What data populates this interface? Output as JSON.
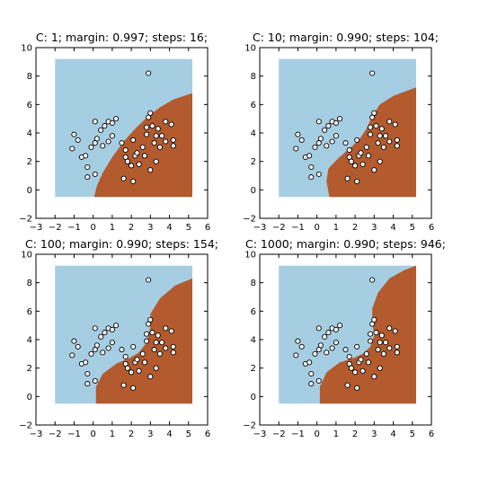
{
  "colors": {
    "region_positive": "#b35a2e",
    "region_negative": "#a6cee3",
    "point_face": "#ffffff",
    "point_edge": "#000000",
    "frame": "#000000"
  },
  "chart_data": [
    {
      "type": "scatter",
      "title": "C: 1; margin: 0.997; steps: 16;",
      "xlabel": "",
      "ylabel": "",
      "xlim": [
        -3,
        6
      ],
      "ylim": [
        -2,
        10
      ],
      "xticks": [
        -3,
        -2,
        -1,
        0,
        1,
        2,
        3,
        4,
        5,
        6
      ],
      "yticks": [
        -2,
        0,
        2,
        4,
        6,
        8,
        10
      ],
      "grid": false,
      "region_x": [
        -2,
        5.2
      ],
      "region_y": [
        -0.5,
        9.2
      ],
      "boundary": [
        [
          0.05,
          -0.5
        ],
        [
          0.2,
          0.3
        ],
        [
          0.5,
          1.2
        ],
        [
          1.0,
          2.3
        ],
        [
          1.6,
          3.4
        ],
        [
          2.2,
          4.3
        ],
        [
          2.9,
          5.2
        ],
        [
          3.5,
          5.8
        ],
        [
          4.2,
          6.35
        ],
        [
          5.2,
          6.8
        ]
      ],
      "points": [
        [
          -1.0,
          3.9
        ],
        [
          -0.8,
          3.5
        ],
        [
          -1.1,
          2.9
        ],
        [
          -0.6,
          2.3
        ],
        [
          -0.3,
          1.6
        ],
        [
          -0.4,
          2.4
        ],
        [
          -0.3,
          0.9
        ],
        [
          0.1,
          1.1
        ],
        [
          -0.1,
          3.0
        ],
        [
          0.1,
          3.3
        ],
        [
          0.2,
          3.6
        ],
        [
          0.4,
          4.2
        ],
        [
          0.6,
          4.5
        ],
        [
          0.8,
          4.8
        ],
        [
          1.0,
          4.7
        ],
        [
          1.2,
          5.0
        ],
        [
          0.1,
          4.8
        ],
        [
          0.5,
          3.1
        ],
        [
          0.8,
          3.4
        ],
        [
          1.0,
          3.8
        ],
        [
          1.5,
          3.3
        ],
        [
          1.7,
          2.8
        ],
        [
          1.7,
          2.3
        ],
        [
          1.8,
          2.0
        ],
        [
          2.0,
          1.7
        ],
        [
          2.2,
          2.4
        ],
        [
          2.3,
          2.6
        ],
        [
          2.1,
          3.5
        ],
        [
          2.4,
          1.8
        ],
        [
          2.6,
          3.0
        ],
        [
          2.7,
          2.4
        ],
        [
          2.8,
          3.9
        ],
        [
          2.8,
          4.4
        ],
        [
          2.9,
          5.1
        ],
        [
          3.0,
          5.4
        ],
        [
          3.1,
          4.5
        ],
        [
          3.2,
          3.3
        ],
        [
          3.3,
          3.8
        ],
        [
          3.4,
          4.3
        ],
        [
          3.5,
          3.0
        ],
        [
          3.6,
          3.8
        ],
        [
          3.8,
          4.8
        ],
        [
          4.1,
          4.6
        ],
        [
          4.2,
          3.1
        ],
        [
          4.2,
          3.5
        ],
        [
          3.8,
          3.4
        ],
        [
          3.3,
          2.0
        ],
        [
          3.0,
          1.4
        ],
        [
          2.1,
          0.6
        ],
        [
          1.6,
          0.8
        ],
        [
          2.9,
          8.2
        ]
      ]
    },
    {
      "type": "scatter",
      "title": "C: 10; margin: 0.990; steps: 104;",
      "xlabel": "",
      "ylabel": "",
      "xlim": [
        -3,
        6
      ],
      "ylim": [
        -2,
        10
      ],
      "xticks": [
        -3,
        -2,
        -1,
        0,
        1,
        2,
        3,
        4,
        5,
        6
      ],
      "yticks": [
        -2,
        0,
        2,
        4,
        6,
        8,
        10
      ],
      "grid": false,
      "region_x": [
        -2,
        5.2
      ],
      "region_y": [
        -0.5,
        9.2
      ],
      "boundary": [
        [
          0.65,
          -0.5
        ],
        [
          0.5,
          0.6
        ],
        [
          0.6,
          1.5
        ],
        [
          1.1,
          2.2
        ],
        [
          1.7,
          2.9
        ],
        [
          2.2,
          3.5
        ],
        [
          2.6,
          4.3
        ],
        [
          2.9,
          5.2
        ],
        [
          3.3,
          6.0
        ],
        [
          4.0,
          6.6
        ],
        [
          5.2,
          7.2
        ]
      ],
      "points": [
        [
          -1.0,
          3.9
        ],
        [
          -0.8,
          3.5
        ],
        [
          -1.1,
          2.9
        ],
        [
          -0.6,
          2.3
        ],
        [
          -0.3,
          1.6
        ],
        [
          -0.4,
          2.4
        ],
        [
          -0.3,
          0.9
        ],
        [
          0.1,
          1.1
        ],
        [
          -0.1,
          3.0
        ],
        [
          0.1,
          3.3
        ],
        [
          0.2,
          3.6
        ],
        [
          0.4,
          4.2
        ],
        [
          0.6,
          4.5
        ],
        [
          0.8,
          4.8
        ],
        [
          1.0,
          4.7
        ],
        [
          1.2,
          5.0
        ],
        [
          0.1,
          4.8
        ],
        [
          0.5,
          3.1
        ],
        [
          0.8,
          3.4
        ],
        [
          1.0,
          3.8
        ],
        [
          1.5,
          3.3
        ],
        [
          1.7,
          2.8
        ],
        [
          1.7,
          2.3
        ],
        [
          1.8,
          2.0
        ],
        [
          2.0,
          1.7
        ],
        [
          2.2,
          2.4
        ],
        [
          2.3,
          2.6
        ],
        [
          2.1,
          3.5
        ],
        [
          2.4,
          1.8
        ],
        [
          2.6,
          3.0
        ],
        [
          2.7,
          2.4
        ],
        [
          2.8,
          3.9
        ],
        [
          2.8,
          4.4
        ],
        [
          2.9,
          5.1
        ],
        [
          3.0,
          5.4
        ],
        [
          3.1,
          4.5
        ],
        [
          3.2,
          3.3
        ],
        [
          3.3,
          3.8
        ],
        [
          3.4,
          4.3
        ],
        [
          3.5,
          3.0
        ],
        [
          3.6,
          3.8
        ],
        [
          3.8,
          4.8
        ],
        [
          4.1,
          4.6
        ],
        [
          4.2,
          3.1
        ],
        [
          4.2,
          3.5
        ],
        [
          3.8,
          3.4
        ],
        [
          3.3,
          2.0
        ],
        [
          3.0,
          1.4
        ],
        [
          2.1,
          0.6
        ],
        [
          1.6,
          0.8
        ],
        [
          2.9,
          8.2
        ]
      ]
    },
    {
      "type": "scatter",
      "title": "C: 100; margin: 0.990; steps: 154;",
      "xlabel": "",
      "ylabel": "",
      "xlim": [
        -3,
        6
      ],
      "ylim": [
        -2,
        10
      ],
      "xticks": [
        -3,
        -2,
        -1,
        0,
        1,
        2,
        3,
        4,
        5,
        6
      ],
      "yticks": [
        -2,
        0,
        2,
        4,
        6,
        8,
        10
      ],
      "grid": false,
      "region_x": [
        -2,
        5.2
      ],
      "region_y": [
        -0.5,
        9.2
      ],
      "boundary": [
        [
          0.15,
          -0.5
        ],
        [
          0.15,
          0.7
        ],
        [
          0.5,
          1.6
        ],
        [
          1.2,
          2.3
        ],
        [
          1.9,
          2.7
        ],
        [
          2.4,
          3.1
        ],
        [
          2.8,
          3.8
        ],
        [
          3.0,
          4.9
        ],
        [
          3.0,
          5.8
        ],
        [
          3.5,
          6.9
        ],
        [
          4.3,
          7.8
        ],
        [
          5.2,
          8.3
        ]
      ],
      "points": [
        [
          -1.0,
          3.9
        ],
        [
          -0.8,
          3.5
        ],
        [
          -1.1,
          2.9
        ],
        [
          -0.6,
          2.3
        ],
        [
          -0.3,
          1.6
        ],
        [
          -0.4,
          2.4
        ],
        [
          -0.3,
          0.9
        ],
        [
          0.1,
          1.1
        ],
        [
          -0.1,
          3.0
        ],
        [
          0.1,
          3.3
        ],
        [
          0.2,
          3.6
        ],
        [
          0.4,
          4.2
        ],
        [
          0.6,
          4.5
        ],
        [
          0.8,
          4.8
        ],
        [
          1.0,
          4.7
        ],
        [
          1.2,
          5.0
        ],
        [
          0.1,
          4.8
        ],
        [
          0.5,
          3.1
        ],
        [
          0.8,
          3.4
        ],
        [
          1.0,
          3.8
        ],
        [
          1.5,
          3.3
        ],
        [
          1.7,
          2.8
        ],
        [
          1.7,
          2.3
        ],
        [
          1.8,
          2.0
        ],
        [
          2.0,
          1.7
        ],
        [
          2.2,
          2.4
        ],
        [
          2.3,
          2.6
        ],
        [
          2.1,
          3.5
        ],
        [
          2.4,
          1.8
        ],
        [
          2.6,
          3.0
        ],
        [
          2.7,
          2.4
        ],
        [
          2.8,
          3.9
        ],
        [
          2.8,
          4.4
        ],
        [
          2.9,
          5.1
        ],
        [
          3.0,
          5.4
        ],
        [
          3.1,
          4.5
        ],
        [
          3.2,
          3.3
        ],
        [
          3.3,
          3.8
        ],
        [
          3.4,
          4.3
        ],
        [
          3.5,
          3.0
        ],
        [
          3.6,
          3.8
        ],
        [
          3.8,
          4.8
        ],
        [
          4.1,
          4.6
        ],
        [
          4.2,
          3.1
        ],
        [
          4.2,
          3.5
        ],
        [
          3.8,
          3.4
        ],
        [
          3.3,
          2.0
        ],
        [
          3.0,
          1.4
        ],
        [
          2.1,
          0.6
        ],
        [
          1.6,
          0.8
        ],
        [
          2.9,
          8.2
        ]
      ]
    },
    {
      "type": "scatter",
      "title": "C: 1000; margin: 0.990; steps: 946;",
      "xlabel": "",
      "ylabel": "",
      "xlim": [
        -3,
        6
      ],
      "ylim": [
        -2,
        10
      ],
      "xticks": [
        -3,
        -2,
        -1,
        0,
        1,
        2,
        3,
        4,
        5,
        6
      ],
      "yticks": [
        -2,
        0,
        2,
        4,
        6,
        8,
        10
      ],
      "grid": false,
      "region_x": [
        -2,
        5.2
      ],
      "region_y": [
        -0.5,
        9.2
      ],
      "boundary": [
        [
          0.15,
          -0.5
        ],
        [
          0.15,
          0.7
        ],
        [
          0.5,
          1.7
        ],
        [
          1.2,
          2.4
        ],
        [
          1.9,
          2.7
        ],
        [
          2.4,
          3.0
        ],
        [
          2.8,
          3.5
        ],
        [
          3.0,
          4.3
        ],
        [
          2.9,
          5.3
        ],
        [
          2.9,
          6.2
        ],
        [
          3.2,
          7.3
        ],
        [
          3.8,
          8.3
        ],
        [
          4.6,
          8.9
        ],
        [
          5.2,
          9.2
        ]
      ],
      "points": [
        [
          -1.0,
          3.9
        ],
        [
          -0.8,
          3.5
        ],
        [
          -1.1,
          2.9
        ],
        [
          -0.6,
          2.3
        ],
        [
          -0.3,
          1.6
        ],
        [
          -0.4,
          2.4
        ],
        [
          -0.3,
          0.9
        ],
        [
          0.1,
          1.1
        ],
        [
          -0.1,
          3.0
        ],
        [
          0.1,
          3.3
        ],
        [
          0.2,
          3.6
        ],
        [
          0.4,
          4.2
        ],
        [
          0.6,
          4.5
        ],
        [
          0.8,
          4.8
        ],
        [
          1.0,
          4.7
        ],
        [
          1.2,
          5.0
        ],
        [
          0.1,
          4.8
        ],
        [
          0.5,
          3.1
        ],
        [
          0.8,
          3.4
        ],
        [
          1.0,
          3.8
        ],
        [
          1.5,
          3.3
        ],
        [
          1.7,
          2.8
        ],
        [
          1.7,
          2.3
        ],
        [
          1.8,
          2.0
        ],
        [
          2.0,
          1.7
        ],
        [
          2.2,
          2.4
        ],
        [
          2.3,
          2.6
        ],
        [
          2.1,
          3.5
        ],
        [
          2.4,
          1.8
        ],
        [
          2.6,
          3.0
        ],
        [
          2.7,
          2.4
        ],
        [
          2.8,
          3.9
        ],
        [
          2.8,
          4.4
        ],
        [
          2.9,
          5.1
        ],
        [
          3.0,
          5.4
        ],
        [
          3.1,
          4.5
        ],
        [
          3.2,
          3.3
        ],
        [
          3.3,
          3.8
        ],
        [
          3.4,
          4.3
        ],
        [
          3.5,
          3.0
        ],
        [
          3.6,
          3.8
        ],
        [
          3.8,
          4.8
        ],
        [
          4.1,
          4.6
        ],
        [
          4.2,
          3.1
        ],
        [
          4.2,
          3.5
        ],
        [
          3.8,
          3.4
        ],
        [
          3.3,
          2.0
        ],
        [
          3.0,
          1.4
        ],
        [
          2.1,
          0.6
        ],
        [
          1.6,
          0.8
        ],
        [
          2.9,
          8.2
        ]
      ]
    }
  ]
}
